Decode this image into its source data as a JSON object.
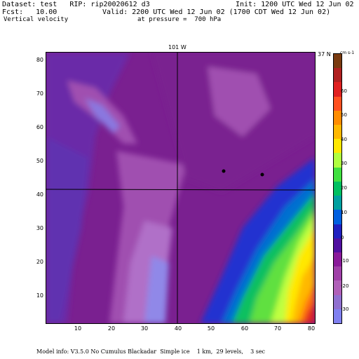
{
  "header": {
    "dataset": "Dataset: test   RIP: rip20020612 d3",
    "init": "Init: 1200 UTC Wed 12 Jun 02",
    "fcst": "Fcst:   10.00",
    "valid": "Valid: 2200 UTC Wed 12 Jun 02 (1700 CDT Wed 12 Jun 02)",
    "field": "Vertical velocity",
    "pressure": "at pressure =  700 hPa"
  },
  "map": {
    "meridian_label": "101 W",
    "parallel_label": "37 N",
    "y_ticks": [
      "80",
      "70",
      "60",
      "50",
      "40",
      "30",
      "20",
      "10"
    ],
    "x_ticks": [
      "10",
      "20",
      "30",
      "40",
      "50",
      "60",
      "70",
      "80"
    ]
  },
  "colorbar": {
    "units": "cm s-1",
    "labels": [
      "60",
      "50",
      "40",
      "30",
      "20",
      "10",
      "0",
      "-10",
      "-20",
      "-30"
    ],
    "colors": [
      "#7a3b10",
      "#b02020",
      "#e02020",
      "#ff5020",
      "#ff8c00",
      "#ffb800",
      "#ffe800",
      "#b0ff40",
      "#40e040",
      "#00c060",
      "#00a0a0",
      "#0060e0",
      "#2020c0",
      "#5010a0",
      "#8a1a9a",
      "#a040a8",
      "#b060b8",
      "#9070d0",
      "#8080f0"
    ]
  },
  "footer": {
    "model_info": "Model info: V3.5.0 No Cumulus Blackadar  Simple ice    1 km,  29 levels,    3 sec"
  }
}
